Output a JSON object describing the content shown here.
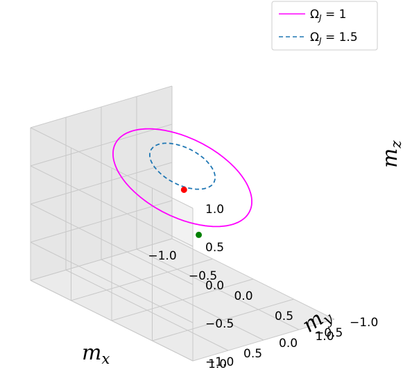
{
  "chart_data": {
    "type": "line",
    "projection": "3d",
    "xlabel": "m",
    "xlabel_sub": "x",
    "ylabel": "m",
    "ylabel_sub": "y",
    "zlabel": "m",
    "zlabel_sub": "z",
    "xlim": [
      -1.0,
      1.0
    ],
    "ylim": [
      -1.0,
      1.0
    ],
    "zlim": [
      -1.0,
      1.0
    ],
    "x_ticks": [
      "−1.0",
      "−0.5",
      "0.0",
      "0.5",
      "1.0"
    ],
    "y_ticks": [
      "−1.0",
      "−0.5",
      "0.0",
      "0.5",
      "1.0"
    ],
    "z_ticks": [
      "−1.0",
      "−0.5",
      "0.0",
      "0.5",
      "1.0"
    ],
    "grid": true,
    "legend_position": "top-right",
    "series": [
      {
        "name": "Ω_J = 1",
        "label_main": "Ω",
        "label_sub": "J",
        "label_rest": " = 1",
        "color": "#ff00ff",
        "style": "solid",
        "center": [
          0.0,
          0.0,
          0.6
        ],
        "radius": 0.68,
        "tilt_deg": 25
      },
      {
        "name": "Ω_J = 1.5",
        "label_main": "Ω",
        "label_sub": "J",
        "label_rest": " = 1.5",
        "color": "#1f77b4",
        "style": "dashed",
        "center": [
          0.0,
          0.0,
          0.75
        ],
        "radius": 0.32,
        "tilt_deg": 25
      }
    ],
    "markers": [
      {
        "name": "initial-point",
        "color": "#ff0000",
        "x": 0.22,
        "y": 0.23,
        "z": 0.62
      },
      {
        "name": "green-point",
        "color": "#008000",
        "x": 0.55,
        "y": 0.4,
        "z": 0.25
      }
    ]
  }
}
